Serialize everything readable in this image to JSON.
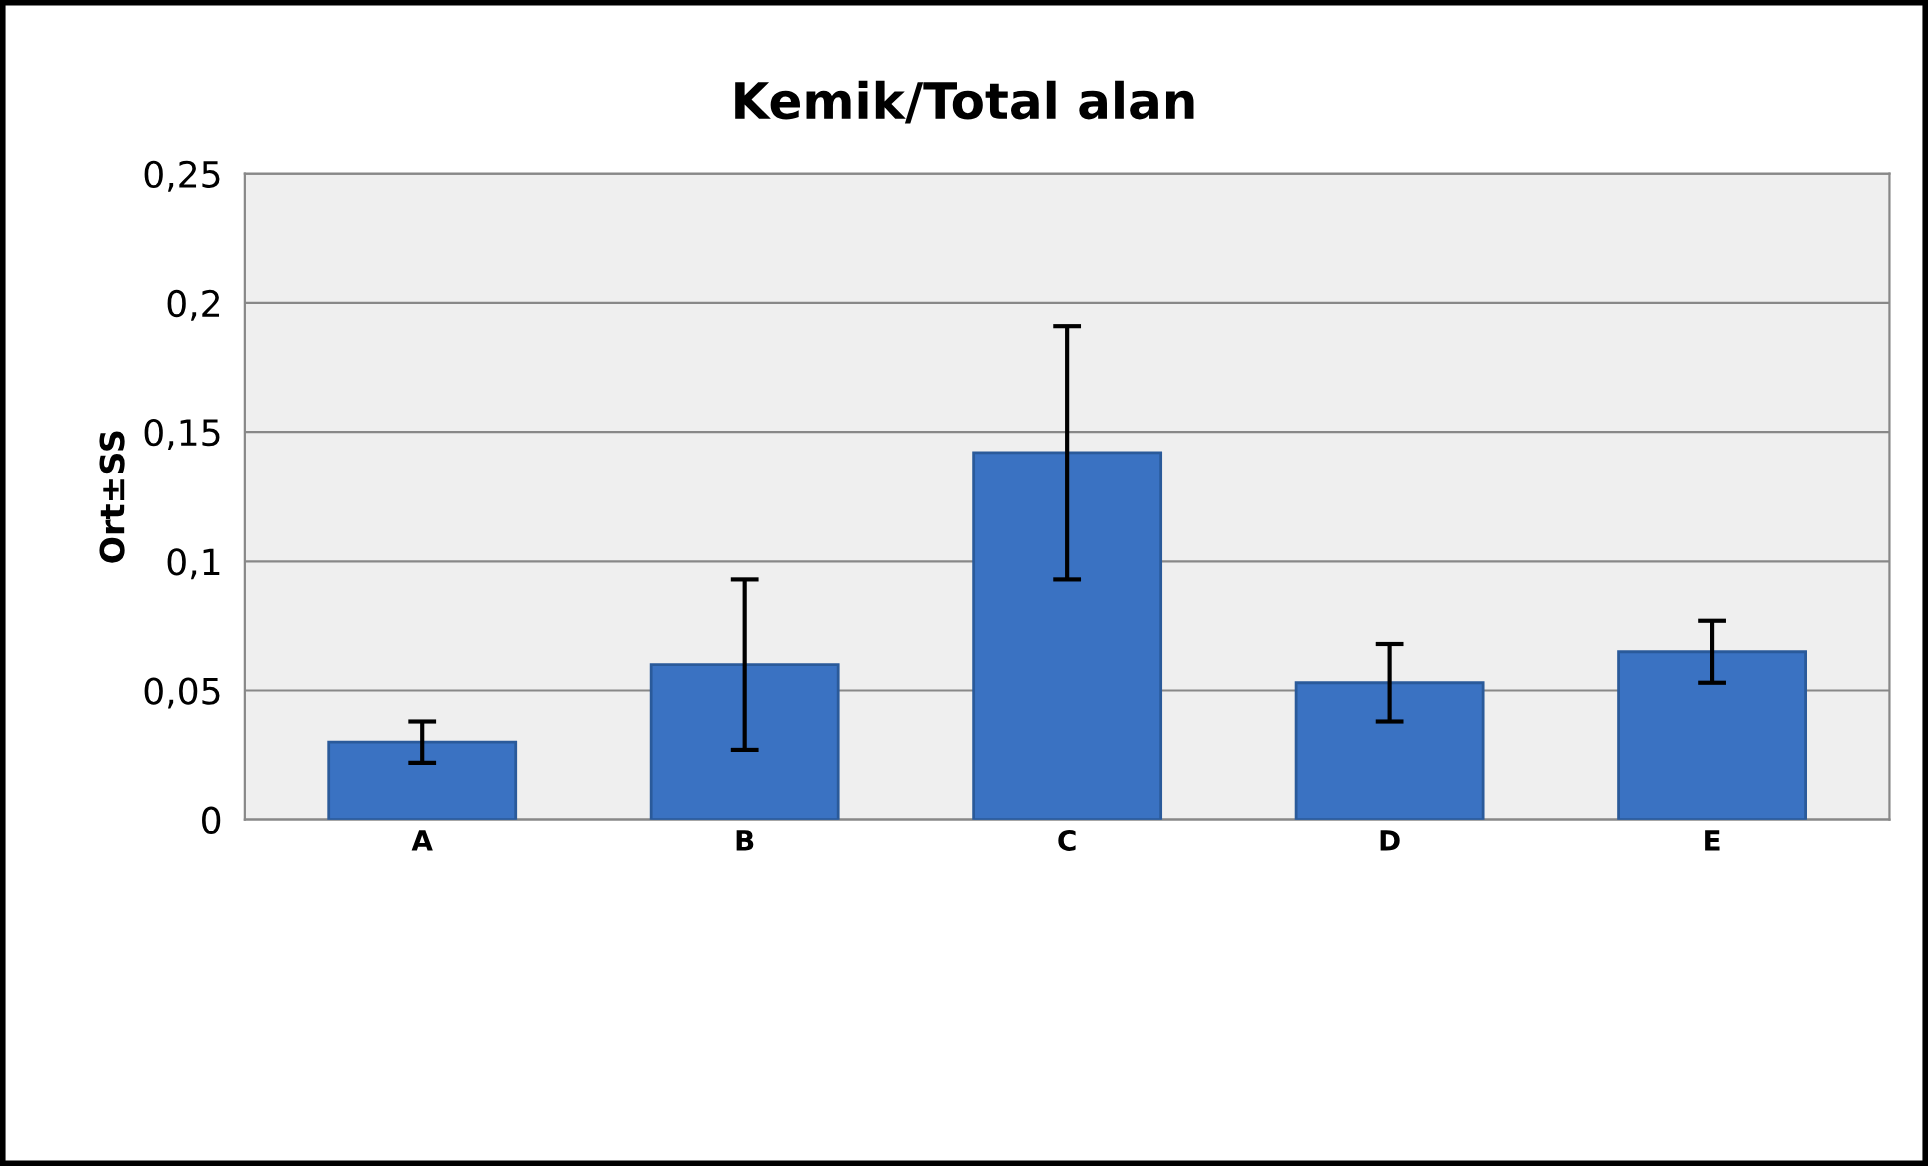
{
  "chart_data": {
    "type": "bar",
    "title": "Kemik/Total alan",
    "ylabel": "Ort±SS",
    "categories": [
      "A",
      "B",
      "C",
      "D",
      "E"
    ],
    "values": [
      0.03,
      0.06,
      0.142,
      0.053,
      0.065
    ],
    "errors": [
      0.008,
      0.033,
      0.049,
      0.015,
      0.012
    ],
    "color": "#3a72c2",
    "ylim": [
      0,
      0.25
    ],
    "yticks": [
      0,
      {
        "value": 0.05,
        "label": "0,05"
      },
      {
        "value": 0.1,
        "label": "0,1"
      },
      {
        "value": 0.15,
        "label": "0,15"
      },
      {
        "value": 0.2,
        "label": "0,2"
      },
      {
        "value": 0.25,
        "label": "0,25"
      }
    ],
    "grid": "y"
  }
}
